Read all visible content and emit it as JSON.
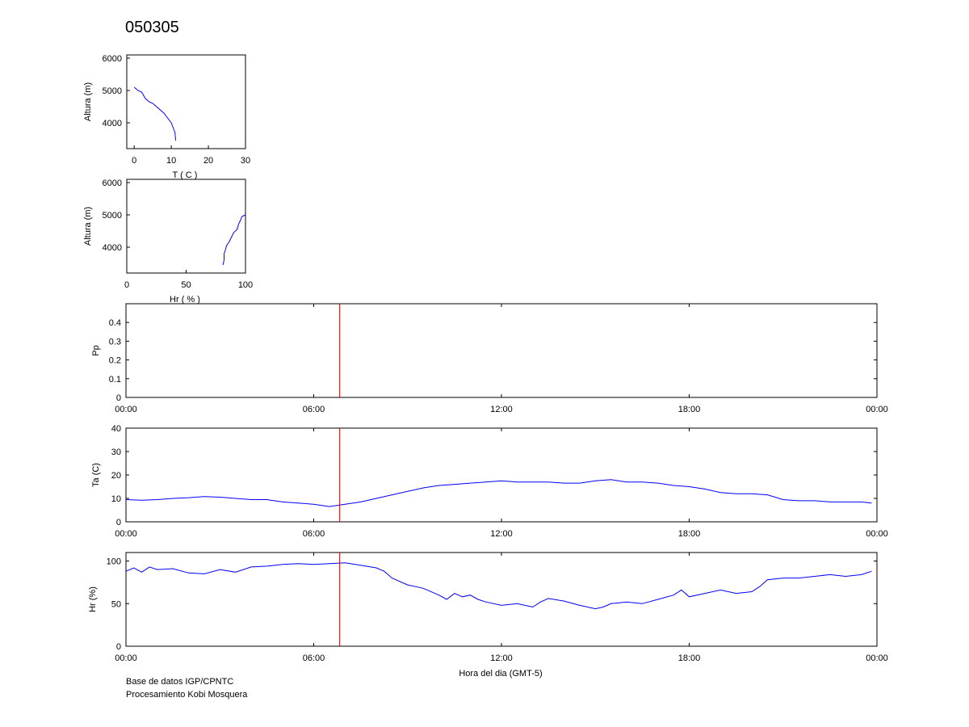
{
  "title": "050305",
  "credits": [
    "Base de datos IGP/CPNTC",
    "Procesamiento Kobi Mosquera"
  ],
  "colors": {
    "series": "#0000ff",
    "marker": "#cc0000",
    "axes": "#000000"
  },
  "chart_data": [
    {
      "id": "temp_profile",
      "type": "line",
      "xlabel": "T ( C )",
      "ylabel": "Altura (m)",
      "xlim": [
        -2,
        30
      ],
      "ylim": [
        3200,
        6100
      ],
      "xticks": [
        "0",
        "10",
        "20",
        "30"
      ],
      "yticks": [
        "4000",
        "5000",
        "6000"
      ],
      "series": [
        {
          "x": [
            0,
            1,
            2,
            2.5,
            3,
            4,
            5,
            6,
            7,
            8,
            9,
            10,
            10.5,
            11,
            11.2
          ],
          "y": [
            5100,
            5000,
            4950,
            4850,
            4750,
            4650,
            4600,
            4500,
            4400,
            4300,
            4150,
            4000,
            3850,
            3700,
            3450
          ]
        }
      ]
    },
    {
      "id": "rh_profile",
      "type": "line",
      "xlabel": "Hr ( % )",
      "ylabel": "Altura (m)",
      "xlim": [
        0,
        100
      ],
      "ylim": [
        3200,
        6100
      ],
      "xticks": [
        "0",
        "50",
        "100"
      ],
      "yticks": [
        "4000",
        "5000",
        "6000"
      ],
      "series": [
        {
          "x": [
            100,
            97,
            96,
            94,
            93,
            90,
            88,
            86,
            84,
            83,
            82,
            82,
            81
          ],
          "y": [
            5000,
            4950,
            4850,
            4700,
            4550,
            4450,
            4300,
            4150,
            4050,
            3900,
            3800,
            3600,
            3450
          ]
        }
      ]
    },
    {
      "id": "precip",
      "type": "line",
      "xlabel": "",
      "ylabel": "Pp",
      "xlim": [
        0,
        24
      ],
      "ylim": [
        0,
        0.5
      ],
      "xticks": [
        "00:00",
        "06:00",
        "12:00",
        "18:00",
        "00:00"
      ],
      "yticks": [
        "0",
        "0.1",
        "0.2",
        "0.3",
        "0.4"
      ],
      "marker_hour": 6.83,
      "series": []
    },
    {
      "id": "air_temp",
      "type": "line",
      "xlabel": "",
      "ylabel": "Ta (C)",
      "xlim": [
        0,
        24
      ],
      "ylim": [
        0,
        40
      ],
      "xticks": [
        "00:00",
        "06:00",
        "12:00",
        "18:00",
        "00:00"
      ],
      "yticks": [
        "0",
        "10",
        "20",
        "30",
        "40"
      ],
      "marker_hour": 6.83,
      "series": [
        {
          "x": [
            0,
            0.5,
            1,
            1.5,
            2,
            2.5,
            3,
            3.5,
            4,
            4.5,
            5,
            5.5,
            6,
            6.5,
            7,
            7.5,
            8,
            8.5,
            9,
            9.5,
            10,
            10.5,
            11,
            11.5,
            12,
            12.5,
            13,
            13.5,
            14,
            14.5,
            15,
            15.5,
            16,
            16.5,
            17,
            17.5,
            18,
            18.5,
            19,
            19.5,
            20,
            20.5,
            21,
            21.5,
            22,
            22.5,
            23,
            23.5,
            23.83
          ],
          "y": [
            9.5,
            9.2,
            9.5,
            10,
            10.3,
            10.8,
            10.5,
            10,
            9.5,
            9.5,
            8.5,
            8,
            7.5,
            6.5,
            7.5,
            8.5,
            10,
            11.5,
            13,
            14.5,
            15.5,
            16,
            16.5,
            17,
            17.5,
            17,
            17,
            17,
            16.5,
            16.5,
            17.5,
            18,
            17,
            17,
            16.5,
            15.5,
            15,
            14,
            12.5,
            12,
            12,
            11.5,
            9.5,
            9,
            9,
            8.5,
            8.5,
            8.5,
            8
          ]
        }
      ]
    },
    {
      "id": "rel_humidity",
      "type": "line",
      "xlabel": "Hora del dia (GMT-5)",
      "ylabel": "Hr (%)",
      "xlim": [
        0,
        24
      ],
      "ylim": [
        0,
        110
      ],
      "xticks": [
        "00:00",
        "06:00",
        "12:00",
        "18:00",
        "00:00"
      ],
      "yticks": [
        "0",
        "50",
        "100"
      ],
      "marker_hour": 6.83,
      "series": [
        {
          "x": [
            0,
            0.25,
            0.5,
            0.75,
            1,
            1.5,
            2,
            2.5,
            3,
            3.5,
            4,
            4.5,
            5,
            5.5,
            6,
            6.5,
            7,
            7.5,
            8,
            8.25,
            8.5,
            9,
            9.5,
            10,
            10.25,
            10.5,
            10.75,
            11,
            11.25,
            11.5,
            12,
            12.5,
            13,
            13.25,
            13.5,
            14,
            14.5,
            15,
            15.25,
            15.5,
            16,
            16.5,
            17,
            17.5,
            17.75,
            18,
            18.5,
            19,
            19.5,
            20,
            20.25,
            20.5,
            21,
            21.5,
            22,
            22.5,
            23,
            23.5,
            23.83
          ],
          "y": [
            88,
            92,
            87,
            93,
            90,
            91,
            86,
            85,
            90,
            87,
            93,
            94,
            96,
            97,
            96,
            97,
            98,
            95,
            92,
            88,
            80,
            72,
            68,
            60,
            55,
            62,
            58,
            60,
            55,
            52,
            48,
            50,
            46,
            52,
            56,
            53,
            48,
            44,
            46,
            50,
            52,
            50,
            55,
            60,
            66,
            58,
            62,
            66,
            62,
            64,
            70,
            78,
            80,
            80,
            82,
            84,
            82,
            84,
            88
          ]
        }
      ]
    }
  ]
}
